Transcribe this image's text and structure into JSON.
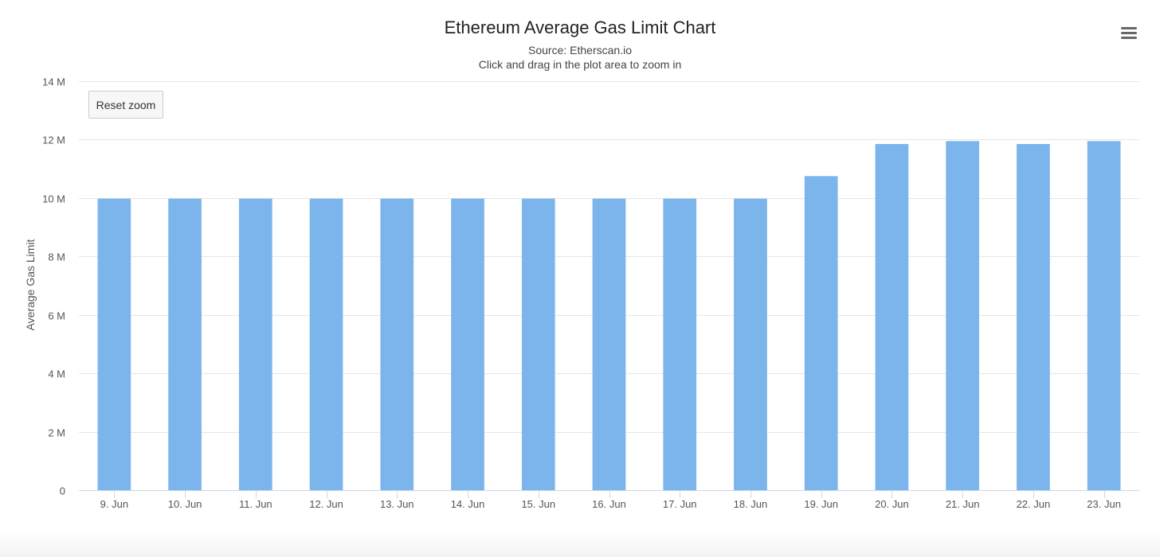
{
  "menu": {
    "icon": "hamburger-menu-icon"
  },
  "reset_zoom": {
    "label": "Reset zoom"
  },
  "colors": {
    "bar": "#7cb5ec",
    "grid": "#e6e6e6",
    "axis_line": "#ccd6eb"
  },
  "chart_data": {
    "type": "bar",
    "title": "Ethereum Average Gas Limit Chart",
    "subtitle": [
      "Source: Etherscan.io",
      "Click and drag in the plot area to zoom in"
    ],
    "xlabel": "",
    "ylabel": "Average Gas Limit",
    "categories": [
      "9. Jun",
      "10. Jun",
      "11. Jun",
      "12. Jun",
      "13. Jun",
      "14. Jun",
      "15. Jun",
      "16. Jun",
      "17. Jun",
      "18. Jun",
      "19. Jun",
      "20. Jun",
      "21. Jun",
      "22. Jun",
      "23. Jun"
    ],
    "values": [
      9980000,
      9980000,
      9980000,
      9980000,
      9980000,
      9980000,
      9980000,
      9980000,
      9980000,
      9980000,
      10750000,
      11850000,
      11950000,
      11850000,
      11950000
    ],
    "ylim": [
      0,
      14000000
    ],
    "yticks": [
      0,
      2000000,
      4000000,
      6000000,
      8000000,
      10000000,
      12000000,
      14000000
    ],
    "ytick_labels": [
      "0",
      "2 M",
      "4 M",
      "6 M",
      "8 M",
      "10 M",
      "12 M",
      "14 M"
    ],
    "grid": true,
    "legend": "none"
  }
}
